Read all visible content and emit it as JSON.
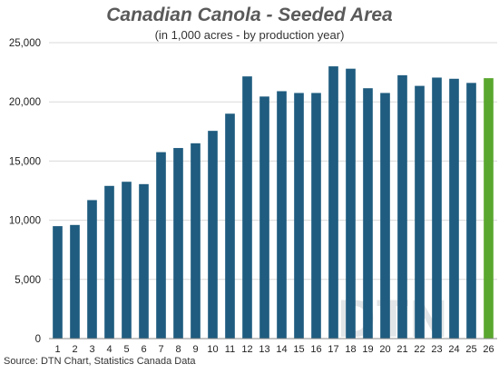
{
  "chart_data": {
    "type": "bar",
    "title": "Canadian Canola - Seeded Area",
    "subtitle": "(in 1,000 acres - by production year)",
    "source": "Source: DTN Chart, Statistics Canada Data",
    "watermark": "DTN",
    "categories": [
      "1",
      "2",
      "3",
      "4",
      "5",
      "6",
      "7",
      "8",
      "9",
      "10",
      "11",
      "12",
      "13",
      "14",
      "15",
      "16",
      "17",
      "18",
      "19",
      "20",
      "21",
      "22",
      "23",
      "24",
      "25",
      "26"
    ],
    "values": [
      9500,
      9600,
      11700,
      12900,
      13250,
      13050,
      15750,
      16100,
      16500,
      17550,
      19000,
      22150,
      20450,
      20900,
      20750,
      20750,
      23000,
      22800,
      21150,
      20750,
      22250,
      21350,
      22050,
      21950,
      21600,
      22000
    ],
    "yticks": [
      "0",
      "5,000",
      "10,000",
      "15,000",
      "20,000",
      "25,000"
    ],
    "ylim": [
      0,
      25000
    ],
    "grid": true,
    "colors": {
      "bar": "#1f5c7f",
      "highlight": "#5aa72f",
      "grid": "#d9d9d9",
      "axis": "#888888"
    },
    "highlight_index": 25
  }
}
